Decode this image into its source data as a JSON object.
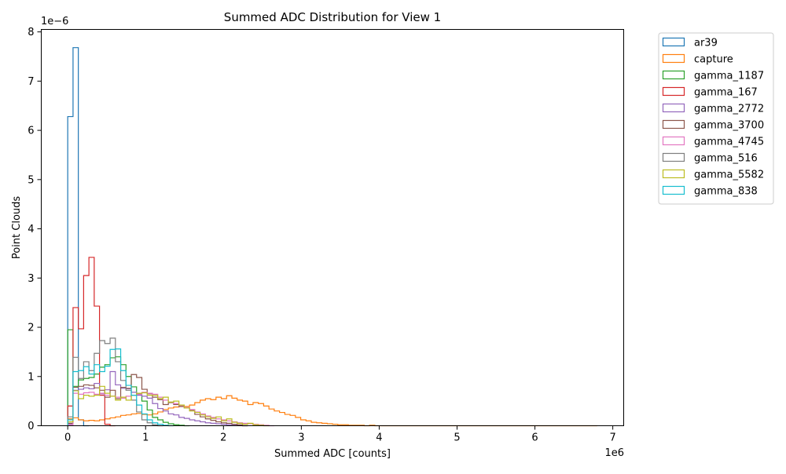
{
  "chart_data": {
    "type": "step-histogram",
    "title": "Summed ADC Distribution for View 1",
    "xlabel": "Summed ADC [counts]",
    "ylabel": "Point Clouds",
    "x_offset_label": "1e6",
    "y_offset_label": "1e−6",
    "xlim": [
      -0.34,
      7.14
    ],
    "ylim": [
      0,
      8.05
    ],
    "x_ticks": [
      0,
      1,
      2,
      3,
      4,
      5,
      6,
      7
    ],
    "x_tick_labels": [
      "0",
      "1",
      "2",
      "3",
      "4",
      "5",
      "6",
      "7"
    ],
    "y_ticks": [
      0,
      1,
      2,
      3,
      4,
      5,
      6,
      7,
      8
    ],
    "y_tick_labels": [
      "0",
      "1",
      "2",
      "3",
      "4",
      "5",
      "6",
      "7",
      "8"
    ],
    "legend_position": "outside-top-right",
    "bin_width": 0.068,
    "series": [
      {
        "name": "ar39",
        "color": "#1f77b4",
        "x_start": 0,
        "values": [
          6.28,
          7.68,
          0.12,
          0.0
        ]
      },
      {
        "name": "capture",
        "color": "#ff7f0e",
        "x_start": 0,
        "values": [
          0.14,
          0.16,
          0.12,
          0.1,
          0.11,
          0.1,
          0.12,
          0.14,
          0.16,
          0.18,
          0.21,
          0.22,
          0.24,
          0.25,
          0.23,
          0.22,
          0.24,
          0.28,
          0.33,
          0.36,
          0.38,
          0.41,
          0.39,
          0.42,
          0.47,
          0.52,
          0.55,
          0.53,
          0.58,
          0.55,
          0.61,
          0.56,
          0.52,
          0.5,
          0.43,
          0.47,
          0.45,
          0.4,
          0.34,
          0.3,
          0.27,
          0.23,
          0.21,
          0.17,
          0.12,
          0.1,
          0.07,
          0.06,
          0.05,
          0.04,
          0.03,
          0.02,
          0.02,
          0.01,
          0.01,
          0.01,
          0.0,
          0.01,
          0.0,
          0.0,
          0.0,
          0.0,
          0.0,
          0.0,
          0.0,
          0.0,
          0.0,
          0.0,
          0.0,
          0.0,
          0.0,
          0.0,
          0.0,
          0.0,
          0.0,
          0.0,
          0.0,
          0.0,
          0.0,
          0.0,
          0.0,
          0.0,
          0.0,
          0.0,
          0.0,
          0.0,
          0.0,
          0.0,
          0.0,
          0.0,
          0.0,
          0.0,
          0.0,
          0.0,
          0.0,
          0.0,
          0.0,
          0.0,
          0.0,
          0.0
        ]
      },
      {
        "name": "gamma_1187",
        "color": "#2ca02c",
        "x_start": 0,
        "values": [
          1.95,
          0.8,
          0.93,
          0.96,
          0.98,
          1.05,
          1.19,
          1.24,
          1.38,
          1.4,
          1.24,
          1.0,
          0.79,
          0.65,
          0.5,
          0.32,
          0.17,
          0.12,
          0.07,
          0.04,
          0.02,
          0.01,
          0.0
        ]
      },
      {
        "name": "gamma_167",
        "color": "#d62728",
        "x_start": 0,
        "values": [
          0.4,
          2.4,
          1.97,
          3.05,
          3.42,
          2.43,
          0.62,
          0.03,
          0.0
        ]
      },
      {
        "name": "gamma_2772",
        "color": "#9467bd",
        "x_start": 0,
        "values": [
          0.03,
          0.72,
          0.74,
          0.77,
          0.75,
          0.86,
          0.65,
          0.73,
          1.1,
          0.83,
          0.76,
          0.75,
          0.68,
          0.62,
          0.6,
          0.56,
          0.45,
          0.35,
          0.3,
          0.24,
          0.22,
          0.17,
          0.15,
          0.12,
          0.1,
          0.08,
          0.06,
          0.05,
          0.04,
          0.03,
          0.02,
          0.02,
          0.01,
          0.0
        ]
      },
      {
        "name": "gamma_3700",
        "color": "#8c564b",
        "x_start": 0,
        "values": [
          0.05,
          0.78,
          0.8,
          0.83,
          0.82,
          0.77,
          0.72,
          0.58,
          0.72,
          0.55,
          0.78,
          0.76,
          1.04,
          0.98,
          0.74,
          0.65,
          0.58,
          0.53,
          0.43,
          0.47,
          0.43,
          0.39,
          0.36,
          0.31,
          0.23,
          0.18,
          0.14,
          0.11,
          0.08,
          0.06,
          0.05,
          0.03,
          0.02,
          0.0
        ]
      },
      {
        "name": "gamma_4745",
        "color": "#e377c2",
        "x_start": 0,
        "values": [
          0.02,
          0.66,
          0.64,
          0.67,
          0.68,
          0.64,
          0.66,
          0.62,
          0.6,
          0.58,
          0.56,
          0.6,
          0.62,
          0.64,
          0.68,
          0.66,
          0.64,
          0.58,
          0.52,
          0.48,
          0.45,
          0.41,
          0.37,
          0.33,
          0.28,
          0.24,
          0.2,
          0.17,
          0.14,
          0.12,
          0.1,
          0.08,
          0.06,
          0.05,
          0.04,
          0.03,
          0.02,
          0.01,
          0.0
        ]
      },
      {
        "name": "gamma_516",
        "color": "#7f7f7f",
        "x_start": 0,
        "values": [
          0.18,
          1.39,
          0.96,
          1.3,
          1.12,
          1.47,
          1.73,
          1.67,
          1.78,
          1.3,
          0.92,
          0.72,
          0.52,
          0.28,
          0.12,
          0.06,
          0.02,
          0.0
        ]
      },
      {
        "name": "gamma_5582",
        "color": "#bcbd22",
        "x_start": 0,
        "values": [
          0.08,
          0.71,
          0.55,
          0.62,
          0.6,
          0.62,
          0.8,
          0.66,
          0.6,
          0.52,
          0.58,
          0.52,
          0.62,
          0.66,
          0.67,
          0.62,
          0.62,
          0.55,
          0.58,
          0.48,
          0.5,
          0.42,
          0.36,
          0.3,
          0.27,
          0.22,
          0.18,
          0.15,
          0.18,
          0.1,
          0.14,
          0.07,
          0.05,
          0.03,
          0.05,
          0.02,
          0.01,
          0.0
        ]
      },
      {
        "name": "gamma_838",
        "color": "#17becf",
        "x_start": 0,
        "values": [
          0.12,
          1.1,
          1.12,
          1.2,
          1.05,
          1.24,
          1.1,
          1.21,
          1.55,
          1.56,
          1.12,
          0.82,
          0.62,
          0.42,
          0.24,
          0.12,
          0.06,
          0.03,
          0.01,
          0.0
        ]
      }
    ]
  }
}
